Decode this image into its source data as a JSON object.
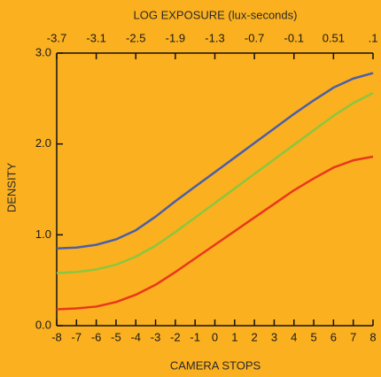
{
  "chart_data": {
    "type": "line",
    "title": "LOG EXPOSURE (lux-seconds)",
    "xlabel": "CAMERA STOPS",
    "ylabel": "DENSITY",
    "x": [
      -8,
      -7,
      -6,
      -5,
      -4,
      -3,
      -2,
      -1,
      0,
      1,
      2,
      3,
      4,
      5,
      6,
      7,
      8
    ],
    "xlim": [
      -8,
      8
    ],
    "xticks": [
      -8,
      -7,
      -6,
      -5,
      -4,
      -3,
      -2,
      -1,
      0,
      1,
      2,
      3,
      4,
      5,
      6,
      7,
      8
    ],
    "top_labels": [
      "-3.7",
      "-3.1",
      "-2.5",
      "-1.9",
      "-1.3",
      "-0.7",
      "-0.1",
      "0.51",
      ".1"
    ],
    "ylim": [
      0,
      3
    ],
    "yticks": [
      {
        "value": 0,
        "label": "0.0"
      },
      {
        "value": 1,
        "label": "1.0"
      },
      {
        "value": 2,
        "label": "2.0"
      },
      {
        "value": 3,
        "label": "3.0"
      }
    ],
    "series": [
      {
        "color": "#4a5fa8",
        "values": [
          0.85,
          0.86,
          0.89,
          0.95,
          1.05,
          1.2,
          1.37,
          1.53,
          1.69,
          1.85,
          2.01,
          2.17,
          2.33,
          2.48,
          2.62,
          2.72,
          2.78
        ]
      },
      {
        "color": "#8cc63f",
        "values": [
          0.58,
          0.59,
          0.62,
          0.67,
          0.76,
          0.88,
          1.03,
          1.19,
          1.35,
          1.51,
          1.67,
          1.83,
          1.99,
          2.15,
          2.31,
          2.45,
          2.56
        ]
      },
      {
        "color": "#e8381c",
        "values": [
          0.18,
          0.19,
          0.21,
          0.26,
          0.34,
          0.45,
          0.59,
          0.74,
          0.89,
          1.04,
          1.19,
          1.34,
          1.49,
          1.62,
          1.74,
          1.82,
          1.86
        ]
      }
    ]
  }
}
